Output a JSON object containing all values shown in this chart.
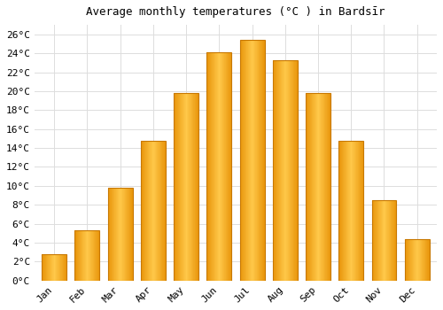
{
  "title": "Average monthly temperatures (°C ) in Bardsīr",
  "months": [
    "Jan",
    "Feb",
    "Mar",
    "Apr",
    "May",
    "Jun",
    "Jul",
    "Aug",
    "Sep",
    "Oct",
    "Nov",
    "Dec"
  ],
  "values": [
    2.8,
    5.3,
    9.8,
    14.8,
    19.8,
    24.1,
    25.4,
    23.3,
    19.8,
    14.8,
    8.5,
    4.4
  ],
  "bar_color_light": "#FFC84A",
  "bar_color_dark": "#E8950A",
  "bar_edge_color": "#C87800",
  "background_color": "#FFFFFF",
  "grid_color": "#DDDDDD",
  "ylim": [
    0,
    27
  ],
  "yticks": [
    0,
    2,
    4,
    6,
    8,
    10,
    12,
    14,
    16,
    18,
    20,
    22,
    24,
    26
  ],
  "ylabel_suffix": "°C",
  "title_fontsize": 9,
  "tick_fontsize": 8,
  "bar_width": 0.75
}
